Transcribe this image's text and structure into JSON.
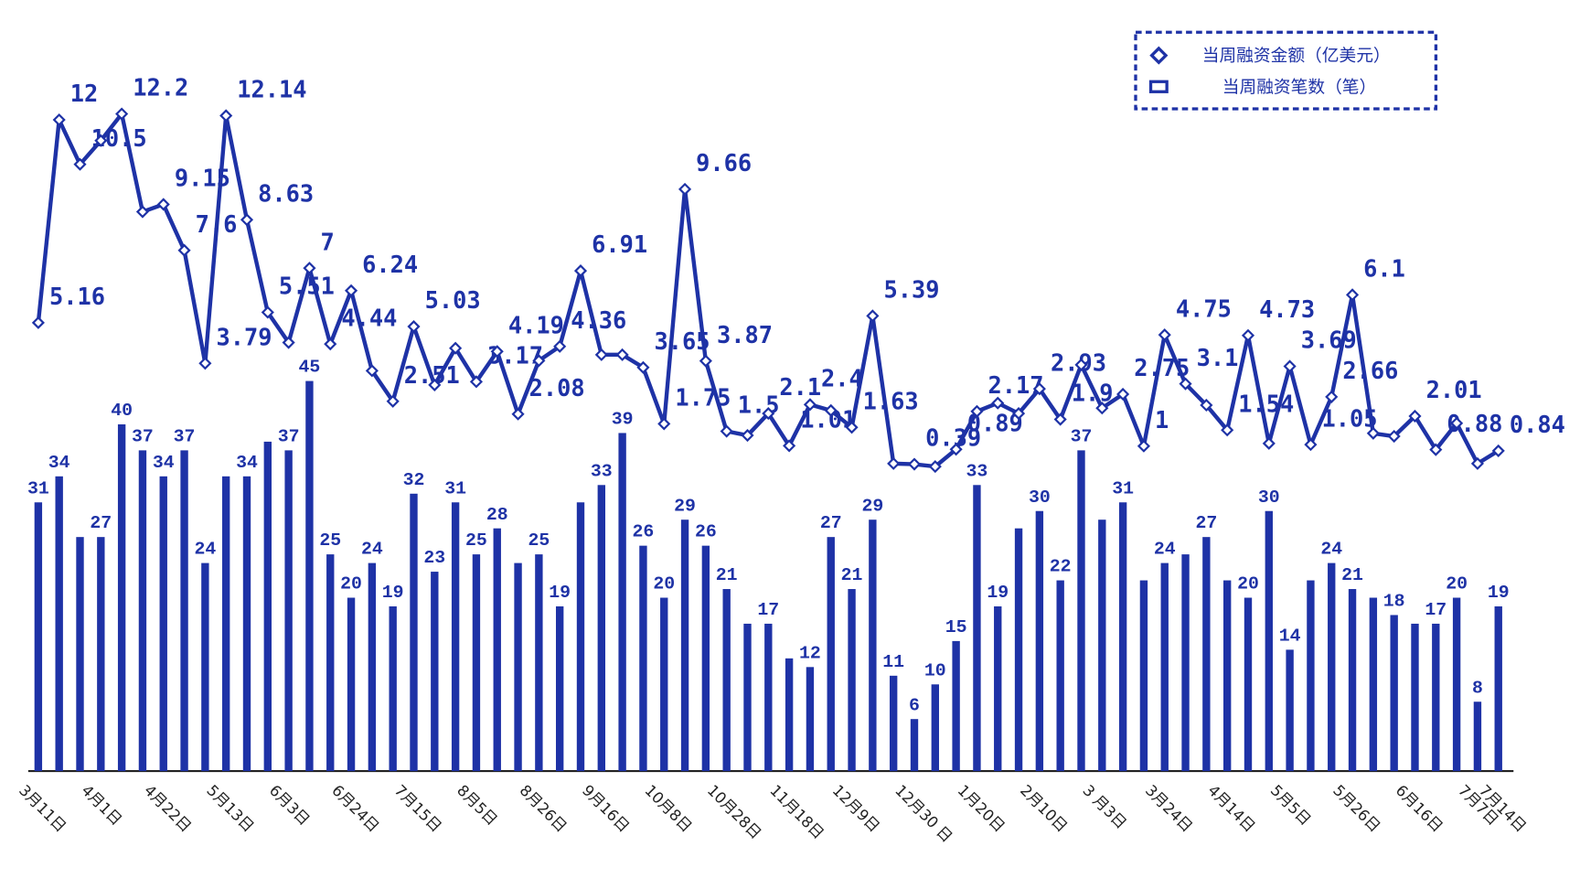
{
  "chart_data": {
    "type": "bar-line",
    "legend": "top-right",
    "categories": [
      "3月11日",
      null,
      null,
      "4月1日",
      null,
      null,
      "4月22日",
      null,
      null,
      "5月13日",
      null,
      null,
      "6月3日",
      null,
      null,
      "6月24日",
      null,
      null,
      "7月15日",
      null,
      null,
      "8月5日",
      null,
      null,
      "8月26日",
      null,
      null,
      "9月16日",
      null,
      null,
      "10月8日",
      null,
      null,
      "10月28日",
      null,
      null,
      "11月18日",
      null,
      null,
      "12月9日",
      null,
      null,
      "12月30 日",
      null,
      null,
      "1月20日",
      null,
      null,
      "2月10日",
      null,
      null,
      "3 月3日",
      null,
      null,
      "3月24日",
      null,
      null,
      "4月14日",
      null,
      null,
      "5月5日",
      null,
      null,
      "5月26日",
      null,
      null,
      "6月16日",
      null,
      null,
      "7月7日",
      "7月14日"
    ],
    "series": [
      {
        "name": "当周融资金额（亿美元）",
        "type": "line",
        "color": "#1e32a6",
        "values": [
          5.16,
          12,
          10.5,
          11.3,
          12.2,
          8.9,
          9.15,
          7.6,
          3.79,
          12.14,
          8.63,
          5.51,
          4.49,
          7,
          4.44,
          6.24,
          3.54,
          2.51,
          5.03,
          3.06,
          4.3,
          3.17,
          4.19,
          2.08,
          3.88,
          4.36,
          6.91,
          4.08,
          4.08,
          3.65,
          1.75,
          9.66,
          3.87,
          1.5,
          1.36,
          2.1,
          1.01,
          2.4,
          2.2,
          1.63,
          5.39,
          0.41,
          0.39,
          0.31,
          0.89,
          2.17,
          2.45,
          2.1,
          2.93,
          1.9,
          3.74,
          2.28,
          2.75,
          1,
          4.75,
          3.1,
          2.38,
          1.54,
          4.73,
          1.09,
          3.69,
          1.05,
          2.66,
          6.1,
          1.43,
          1.33,
          2.01,
          0.88,
          1.77,
          0.41,
          0.84
        ],
        "value_labels": [
          "5.16",
          "12",
          "10.5",
          null,
          "12.2",
          null,
          "9.15",
          "7.6",
          "3.79",
          "12.14",
          "8.63",
          "5.51",
          null,
          "7",
          "4.44",
          "6.24",
          null,
          "2.51",
          "5.03",
          null,
          null,
          "3.17",
          "4.19",
          "2.08",
          null,
          "4.36",
          "6.91",
          null,
          null,
          "3.65",
          "1.75",
          "9.66",
          "3.87",
          "1.5",
          null,
          "2.1",
          "1.01",
          "2.4",
          null,
          "1.63",
          "5.39",
          null,
          "0.39",
          null,
          "0.89",
          "2.17",
          null,
          null,
          "2.93",
          "1.9",
          null,
          null,
          "2.75",
          "1",
          "4.75",
          "3.1",
          null,
          "1.54",
          "4.73",
          null,
          "3.69",
          "1.05",
          "2.66",
          "6.1",
          null,
          null,
          "2.01",
          "0.88",
          null,
          null,
          "0.84"
        ]
      },
      {
        "name": "当周融资笔数（笔）",
        "type": "bar",
        "color": "#1e32a6",
        "values": [
          31,
          34,
          27,
          27,
          40,
          37,
          34,
          37,
          24,
          34,
          34,
          38,
          37,
          45,
          25,
          20,
          24,
          19,
          32,
          23,
          31,
          25,
          28,
          24,
          25,
          19,
          31,
          33,
          39,
          26,
          20,
          29,
          26,
          21,
          17,
          17,
          13,
          12,
          27,
          21,
          29,
          11,
          6,
          10,
          15,
          33,
          19,
          28,
          30,
          22,
          37,
          29,
          31,
          22,
          24,
          25,
          27,
          22,
          20,
          30,
          14,
          22,
          24,
          21,
          20,
          18,
          17,
          17,
          20,
          8,
          19
        ],
        "value_labels": [
          "31",
          "34",
          null,
          "27",
          "40",
          "37",
          "34",
          "37",
          "24",
          null,
          "34",
          null,
          "37",
          "45",
          "25",
          "20",
          "24",
          "19",
          "32",
          "23",
          "31",
          "25",
          "28",
          null,
          "25",
          "19",
          null,
          "33",
          "39",
          "26",
          "20",
          "29",
          "26",
          "21",
          null,
          "17",
          null,
          "12",
          "27",
          "21",
          "29",
          "11",
          "6",
          "10",
          "15",
          "33",
          "19",
          null,
          "30",
          "22",
          "37",
          null,
          "31",
          null,
          "24",
          null,
          "27",
          null,
          "20",
          "30",
          "14",
          null,
          "24",
          "21",
          null,
          "18",
          null,
          "17",
          "20",
          "8",
          "19"
        ]
      }
    ]
  }
}
